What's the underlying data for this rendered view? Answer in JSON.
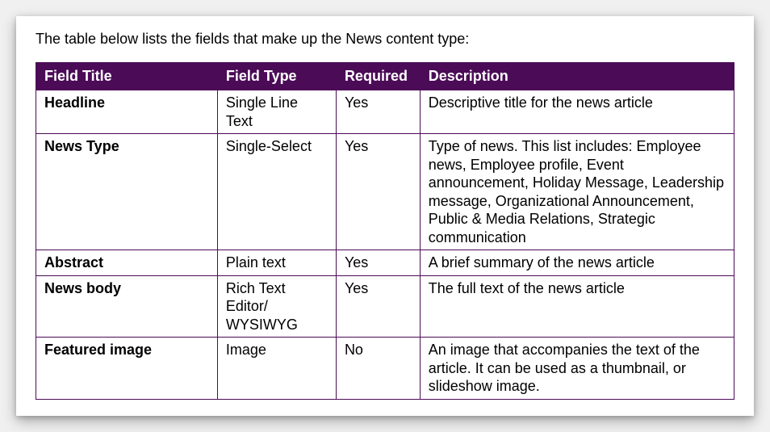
{
  "intro": "The table below lists the fields that make up the News content type:",
  "colors": {
    "header_bg": "#4b0b57",
    "header_text": "#ffffff",
    "border": "#4b0b57",
    "body_text": "#000000",
    "body_bg": "#ffffff"
  },
  "table": {
    "columns": [
      "Field Title",
      "Field Type",
      "Required",
      "Description"
    ],
    "rows": [
      {
        "title": "Headline",
        "type": "Single Line Text",
        "required": "Yes",
        "description": "Descriptive title for the news article"
      },
      {
        "title": "News Type",
        "type": "Single-Select",
        "required": "Yes",
        "description": "Type of news. This list includes: Employee news, Employee profile, Event announcement, Holiday Message, Leadership message, Organizational Announcement, Public & Media Relations, Strategic communication"
      },
      {
        "title": "Abstract",
        "type": "Plain text",
        "required": "Yes",
        "description": "A brief summary of the news article"
      },
      {
        "title": "News body",
        "type": "Rich Text Editor/ WYSIWYG",
        "required": "Yes",
        "description": "The full text of the news article"
      },
      {
        "title": "Featured image",
        "type": "Image",
        "required": "No",
        "description": "An image that accompanies the text of the article. It can be used as a thumbnail, or slideshow image."
      }
    ]
  }
}
